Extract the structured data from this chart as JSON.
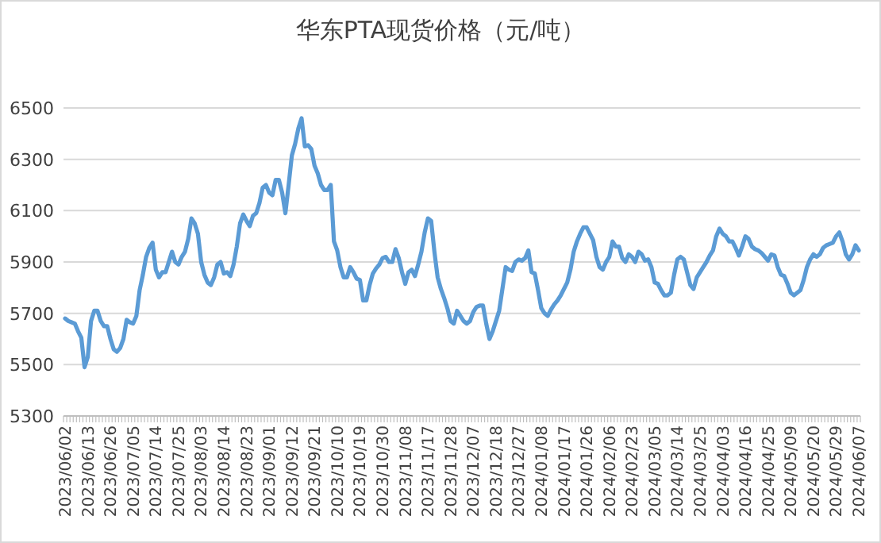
{
  "chart_data": {
    "type": "line",
    "title": "华东PTA现货价格（元/吨）",
    "categories": [
      "2023/06/02",
      null,
      null,
      null,
      null,
      null,
      null,
      "2023/06/13",
      null,
      null,
      null,
      null,
      null,
      null,
      "2023/06/26",
      null,
      null,
      null,
      null,
      null,
      null,
      "2023/07/05",
      null,
      null,
      null,
      null,
      null,
      null,
      "2023/07/14",
      null,
      null,
      null,
      null,
      null,
      null,
      "2023/07/25",
      null,
      null,
      null,
      null,
      null,
      null,
      "2023/08/03",
      null,
      null,
      null,
      null,
      null,
      null,
      "2023/08/14",
      null,
      null,
      null,
      null,
      null,
      null,
      "2023/08/23",
      null,
      null,
      null,
      null,
      null,
      null,
      "2023/09/01",
      null,
      null,
      null,
      null,
      null,
      null,
      "2023/09/12",
      null,
      null,
      null,
      null,
      null,
      null,
      "2023/09/21",
      null,
      null,
      null,
      null,
      null,
      null,
      "2023/10/10",
      null,
      null,
      null,
      null,
      null,
      null,
      "2023/10/19",
      null,
      null,
      null,
      null,
      null,
      null,
      "2023/10/30",
      null,
      null,
      null,
      null,
      null,
      null,
      "2023/11/08",
      null,
      null,
      null,
      null,
      null,
      null,
      "2023/11/17",
      null,
      null,
      null,
      null,
      null,
      null,
      "2023/11/28",
      null,
      null,
      null,
      null,
      null,
      null,
      "2023/12/07",
      null,
      null,
      null,
      null,
      null,
      null,
      "2023/12/18",
      null,
      null,
      null,
      null,
      null,
      null,
      "2023/12/27",
      null,
      null,
      null,
      null,
      null,
      null,
      "2024/01/08",
      null,
      null,
      null,
      null,
      null,
      null,
      "2024/01/17",
      null,
      null,
      null,
      null,
      null,
      null,
      "2024/01/26",
      null,
      null,
      null,
      null,
      null,
      null,
      "2024/02/06",
      null,
      null,
      null,
      null,
      null,
      null,
      "2024/02/23",
      null,
      null,
      null,
      null,
      null,
      null,
      "2024/03/05",
      null,
      null,
      null,
      null,
      null,
      null,
      "2024/03/14",
      null,
      null,
      null,
      null,
      null,
      null,
      "2024/03/25",
      null,
      null,
      null,
      null,
      null,
      null,
      "2024/04/03",
      null,
      null,
      null,
      null,
      null,
      null,
      "2024/04/16",
      null,
      null,
      null,
      null,
      null,
      null,
      "2024/04/25",
      null,
      null,
      null,
      null,
      null,
      null,
      "2024/05/09",
      null,
      null,
      null,
      null,
      null,
      null,
      "2024/05/20",
      null,
      null,
      null,
      null,
      null,
      null,
      "2024/05/29",
      null,
      null,
      null,
      null,
      null,
      null,
      "2024/06/07"
    ],
    "values": [
      5680,
      5670,
      5665,
      5660,
      5630,
      5605,
      5490,
      5530,
      5670,
      5710,
      5710,
      5670,
      5650,
      5650,
      5600,
      5560,
      5550,
      5565,
      5600,
      5675,
      5665,
      5660,
      5690,
      5790,
      5850,
      5920,
      5955,
      5975,
      5870,
      5840,
      5860,
      5860,
      5900,
      5940,
      5900,
      5890,
      5920,
      5940,
      5990,
      6070,
      6050,
      6010,
      5900,
      5850,
      5820,
      5810,
      5840,
      5890,
      5900,
      5855,
      5860,
      5845,
      5890,
      5960,
      6050,
      6085,
      6060,
      6040,
      6080,
      6090,
      6130,
      6190,
      6200,
      6170,
      6160,
      6220,
      6220,
      6170,
      6090,
      6200,
      6315,
      6360,
      6420,
      6460,
      6350,
      6355,
      6340,
      6275,
      6245,
      6200,
      6180,
      6180,
      6200,
      5980,
      5945,
      5880,
      5840,
      5840,
      5880,
      5860,
      5835,
      5830,
      5750,
      5750,
      5810,
      5855,
      5875,
      5890,
      5915,
      5920,
      5900,
      5900,
      5950,
      5915,
      5860,
      5815,
      5860,
      5870,
      5845,
      5890,
      5940,
      6015,
      6070,
      6060,
      5940,
      5840,
      5795,
      5760,
      5720,
      5670,
      5660,
      5710,
      5690,
      5670,
      5660,
      5670,
      5705,
      5725,
      5730,
      5730,
      5660,
      5600,
      5630,
      5670,
      5710,
      5795,
      5880,
      5870,
      5865,
      5900,
      5910,
      5905,
      5915,
      5945,
      5860,
      5855,
      5790,
      5720,
      5700,
      5690,
      5715,
      5735,
      5750,
      5770,
      5795,
      5820,
      5870,
      5940,
      5980,
      6010,
      6035,
      6035,
      6010,
      5985,
      5920,
      5880,
      5870,
      5900,
      5920,
      5980,
      5960,
      5960,
      5915,
      5900,
      5930,
      5920,
      5900,
      5940,
      5930,
      5905,
      5910,
      5880,
      5820,
      5815,
      5790,
      5770,
      5770,
      5780,
      5850,
      5910,
      5920,
      5910,
      5860,
      5810,
      5795,
      5840,
      5860,
      5880,
      5900,
      5925,
      5945,
      6000,
      6030,
      6010,
      6000,
      5980,
      5980,
      5955,
      5925,
      5960,
      6000,
      5990,
      5960,
      5950,
      5945,
      5935,
      5920,
      5905,
      5930,
      5925,
      5880,
      5850,
      5845,
      5815,
      5780,
      5770,
      5780,
      5790,
      5830,
      5880,
      5910,
      5930,
      5920,
      5930,
      5955,
      5965,
      5970,
      5975,
      6000,
      6015,
      5980,
      5930,
      5910,
      5930,
      5965,
      5945
    ],
    "color": "#5b9bd5",
    "ylim": [
      5300,
      6500
    ],
    "yticks": [
      5300,
      5500,
      5700,
      5900,
      6100,
      6300,
      6500
    ],
    "grid": "y"
  }
}
